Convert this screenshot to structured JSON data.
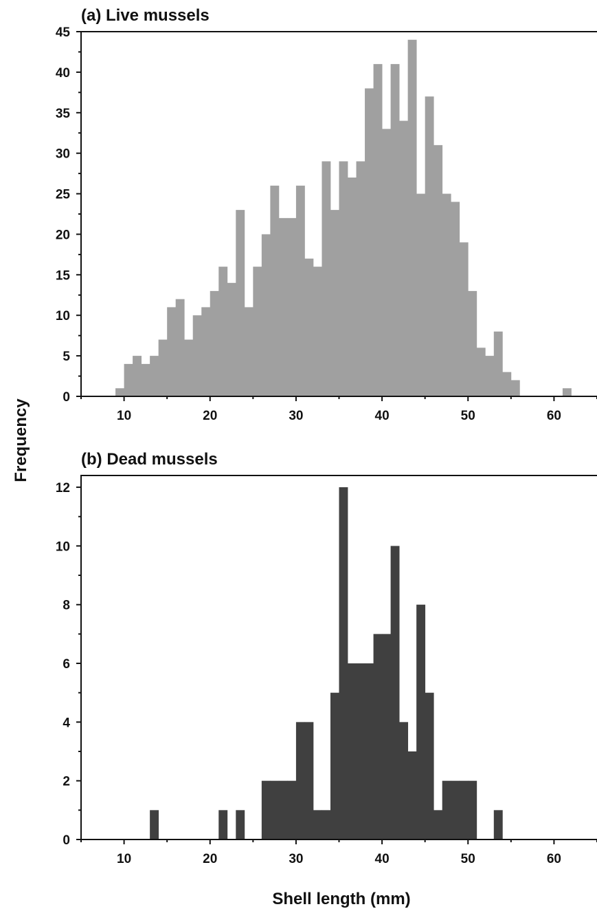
{
  "ylabel": "Frequency",
  "xlabel": "Shell length (mm)",
  "chart_data": [
    {
      "type": "bar",
      "title": "(a) Live mussels",
      "color": "#a0a0a0",
      "xlim": [
        5,
        65
      ],
      "ylim": [
        0,
        45
      ],
      "bin_width": 1,
      "x_ticks": [
        10,
        20,
        30,
        40,
        50,
        60
      ],
      "y_ticks": [
        0,
        5,
        10,
        15,
        20,
        25,
        30,
        35,
        40,
        45
      ],
      "x": [
        9,
        10,
        11,
        12,
        13,
        14,
        15,
        16,
        17,
        18,
        19,
        20,
        21,
        22,
        23,
        24,
        25,
        26,
        27,
        28,
        29,
        30,
        31,
        32,
        33,
        34,
        35,
        36,
        37,
        38,
        39,
        40,
        41,
        42,
        43,
        44,
        45,
        46,
        47,
        48,
        49,
        50,
        51,
        52,
        53,
        54,
        55,
        56,
        57,
        58,
        59,
        60,
        61
      ],
      "values": [
        1,
        4,
        5,
        4,
        5,
        7,
        11,
        12,
        7,
        10,
        11,
        13,
        16,
        14,
        23,
        11,
        16,
        20,
        26,
        22,
        22,
        26,
        17,
        16,
        29,
        23,
        29,
        27,
        29,
        38,
        41,
        33,
        41,
        34,
        44,
        25,
        37,
        31,
        25,
        24,
        19,
        13,
        6,
        5,
        8,
        3,
        2,
        0,
        0,
        0,
        0,
        0,
        1
      ]
    },
    {
      "type": "bar",
      "title": "(b) Dead mussels",
      "color": "#404040",
      "xlim": [
        5,
        65
      ],
      "ylim": [
        0,
        12.4
      ],
      "bin_width": 1,
      "x_ticks": [
        10,
        20,
        30,
        40,
        50,
        60
      ],
      "y_ticks": [
        0,
        2,
        4,
        6,
        8,
        10,
        12
      ],
      "x": [
        13,
        21,
        23,
        26,
        27,
        28,
        29,
        30,
        31,
        32,
        33,
        34,
        35,
        36,
        37,
        38,
        39,
        40,
        41,
        42,
        43,
        44,
        45,
        46,
        47,
        48,
        49,
        50,
        53
      ],
      "values": [
        1,
        1,
        1,
        2,
        2,
        2,
        2,
        4,
        4,
        1,
        1,
        5,
        12,
        6,
        6,
        6,
        7,
        7,
        10,
        4,
        3,
        8,
        5,
        1,
        2,
        2,
        2,
        2,
        1
      ]
    }
  ]
}
